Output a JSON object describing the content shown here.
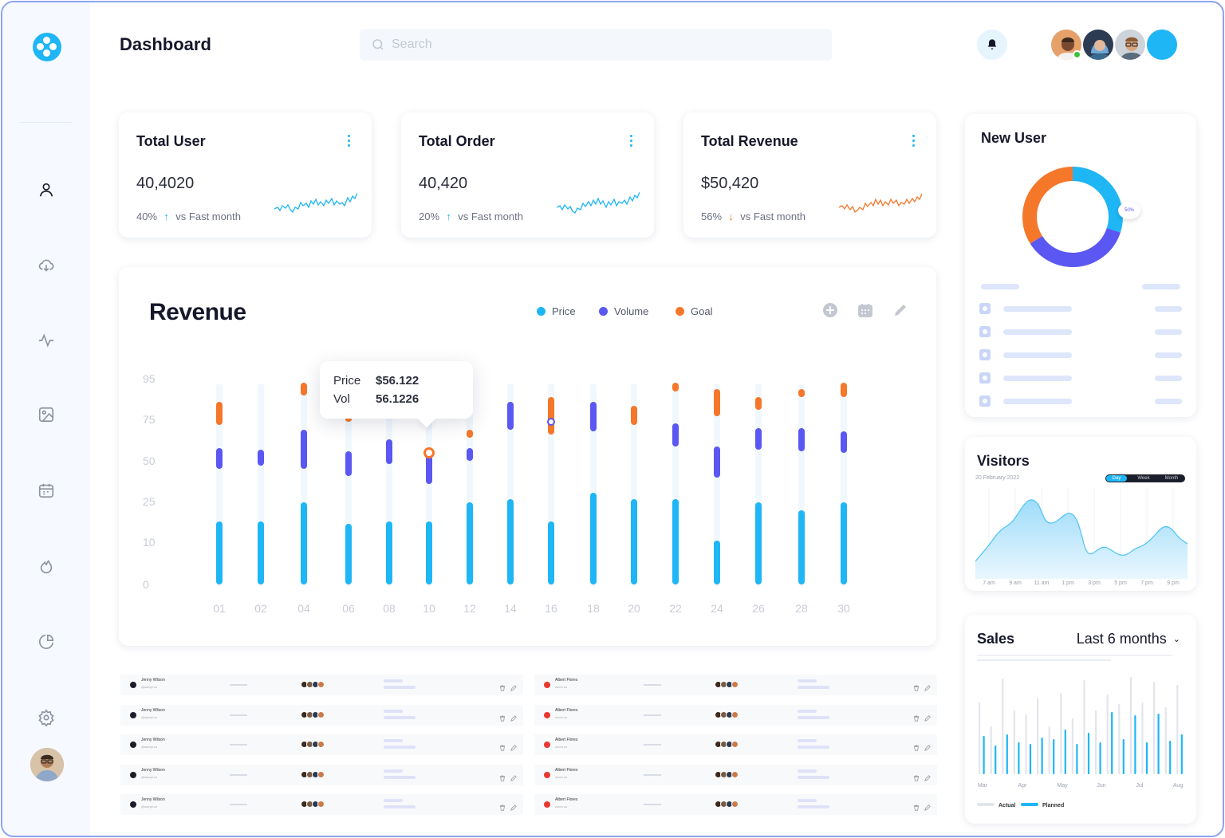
{
  "header": {
    "title": "Dashboard",
    "search_placeholder": "Search"
  },
  "sidebar": {
    "items": [
      {
        "name": "user-icon"
      },
      {
        "name": "cloud-download-icon"
      },
      {
        "name": "activity-icon"
      },
      {
        "name": "image-icon"
      },
      {
        "name": "calendar-icon"
      },
      {
        "name": "fire-icon"
      },
      {
        "name": "pie-chart-icon"
      },
      {
        "name": "settings-icon"
      }
    ]
  },
  "stats": [
    {
      "title": "Total User",
      "value": "40,4020",
      "pct": "40%",
      "direction": "up",
      "arrow": "↑",
      "note": "vs Fast month",
      "color": "#1eb6f5"
    },
    {
      "title": "Total Order",
      "value": "40,420",
      "pct": "20%",
      "direction": "up",
      "arrow": "↑",
      "note": "vs Fast month",
      "color": "#1eb6f5"
    },
    {
      "title": "Total Revenue",
      "value": "$50,420",
      "pct": "56%",
      "direction": "down",
      "arrow": "↓",
      "note": "vs Fast month",
      "color": "#f5772a"
    }
  ],
  "revenue": {
    "title": "Revenue",
    "legend": [
      {
        "label": "Price",
        "color": "#1eb6f5"
      },
      {
        "label": "Volume",
        "color": "#5a57f2"
      },
      {
        "label": "Goal",
        "color": "#f5772a"
      }
    ],
    "tooltip": {
      "price_label": "Price",
      "price_value": "$56.122",
      "vol_label": "Vol",
      "vol_value": "56.1226"
    }
  },
  "chart_data": {
    "type": "bar",
    "yticks": [
      "95",
      "75",
      "50",
      "25",
      "10",
      "0"
    ],
    "categories": [
      "01",
      "02",
      "04",
      "06",
      "08",
      "10",
      "12",
      "14",
      "16",
      "18",
      "20",
      "22",
      "24",
      "26",
      "28",
      "30"
    ],
    "series": [
      {
        "name": "Price",
        "values": [
          18,
          18,
          25,
          17,
          18,
          18,
          25,
          27,
          18,
          31,
          27,
          27,
          11,
          25,
          22,
          25
        ]
      },
      {
        "name": "Volume",
        "low": [
          45,
          47,
          45,
          41,
          48,
          36,
          50,
          69,
          null,
          68,
          null,
          59,
          40,
          57,
          56,
          55
        ],
        "high": [
          58,
          57,
          69,
          56,
          63,
          55,
          58,
          84,
          null,
          84,
          null,
          73,
          59,
          70,
          70,
          68
        ]
      },
      {
        "name": "Goal",
        "low": [
          72,
          null,
          87,
          74,
          null,
          null,
          64,
          null,
          66,
          null,
          72,
          89,
          77,
          80,
          86,
          86
        ],
        "high": [
          84,
          null,
          93,
          77,
          null,
          null,
          69,
          null,
          86,
          null,
          82,
          93,
          90,
          86,
          90,
          93
        ]
      }
    ]
  },
  "tables": {
    "left": [
      {
        "name": "Jenny Wilson",
        "sub": "@sampl.co"
      },
      {
        "name": "Jenny Wilson",
        "sub": "@sampl.co"
      },
      {
        "name": "Jenny Wilson",
        "sub": "@sampl.co"
      },
      {
        "name": "Jenny Wilson",
        "sub": "@sampl.co"
      },
      {
        "name": "Jenny Wilson",
        "sub": "@sampl.co"
      }
    ],
    "right": [
      {
        "name": "Albert Flores",
        "sub": "zoom.us"
      },
      {
        "name": "Albert Flores",
        "sub": "zoom.us"
      },
      {
        "name": "Albert Flores",
        "sub": "zoom.us"
      },
      {
        "name": "Albert Flores",
        "sub": "zoom.us"
      },
      {
        "name": "Albert Flores",
        "sub": "zoom.us"
      }
    ]
  },
  "new_user": {
    "title": "New User",
    "donut": [
      {
        "value": 30,
        "color": "#1eb6f5"
      },
      {
        "value": 36,
        "color": "#5a57f2"
      },
      {
        "value": 34,
        "color": "#f5772a"
      }
    ],
    "label": "50%"
  },
  "visitors": {
    "title": "Visitors",
    "date": "20 February 2022",
    "tabs": [
      "Day",
      "Week",
      "Month"
    ],
    "active_tab": "Day",
    "x": [
      "7 am",
      "9 am",
      "11 am",
      "1 pm",
      "3 pm",
      "5 pm",
      "7 pm",
      "9 pm"
    ]
  },
  "sales": {
    "title": "Sales",
    "range": "Last 6 months",
    "x": [
      "Mar",
      "Apr",
      "May",
      "Jun",
      "Jul",
      "Aug"
    ],
    "legend": [
      {
        "label": "Actual",
        "color": "#e3e5ec"
      },
      {
        "label": "Planned",
        "color": "#1eb6f5"
      }
    ]
  }
}
